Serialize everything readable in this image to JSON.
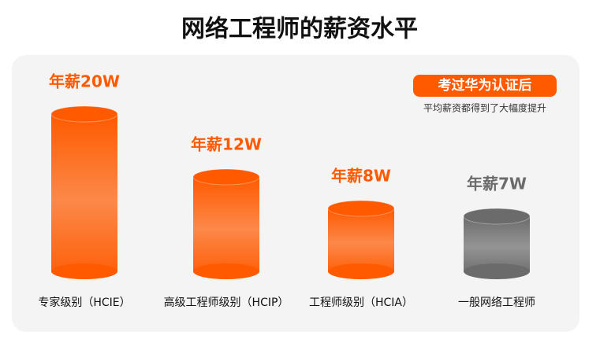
{
  "chart_data": {
    "type": "bar",
    "title": "网络工程师的薪资水平",
    "categories": [
      "专家级别（HCIE）",
      "高级工程师级别（HCIP）",
      "工程师级别（HCIA）",
      "一般网络工程师"
    ],
    "values": [
      20,
      12,
      8,
      7
    ],
    "value_labels": [
      "年薪20W",
      "年薪12W",
      "年薪8W",
      "年薪7W"
    ],
    "colors": [
      "#ff5a00",
      "#ff5a00",
      "#ff5a00",
      "#6b6b6b"
    ],
    "annotation": {
      "badge": "考过华为认证后",
      "note": "平均薪资都得到了大幅度提升"
    }
  }
}
